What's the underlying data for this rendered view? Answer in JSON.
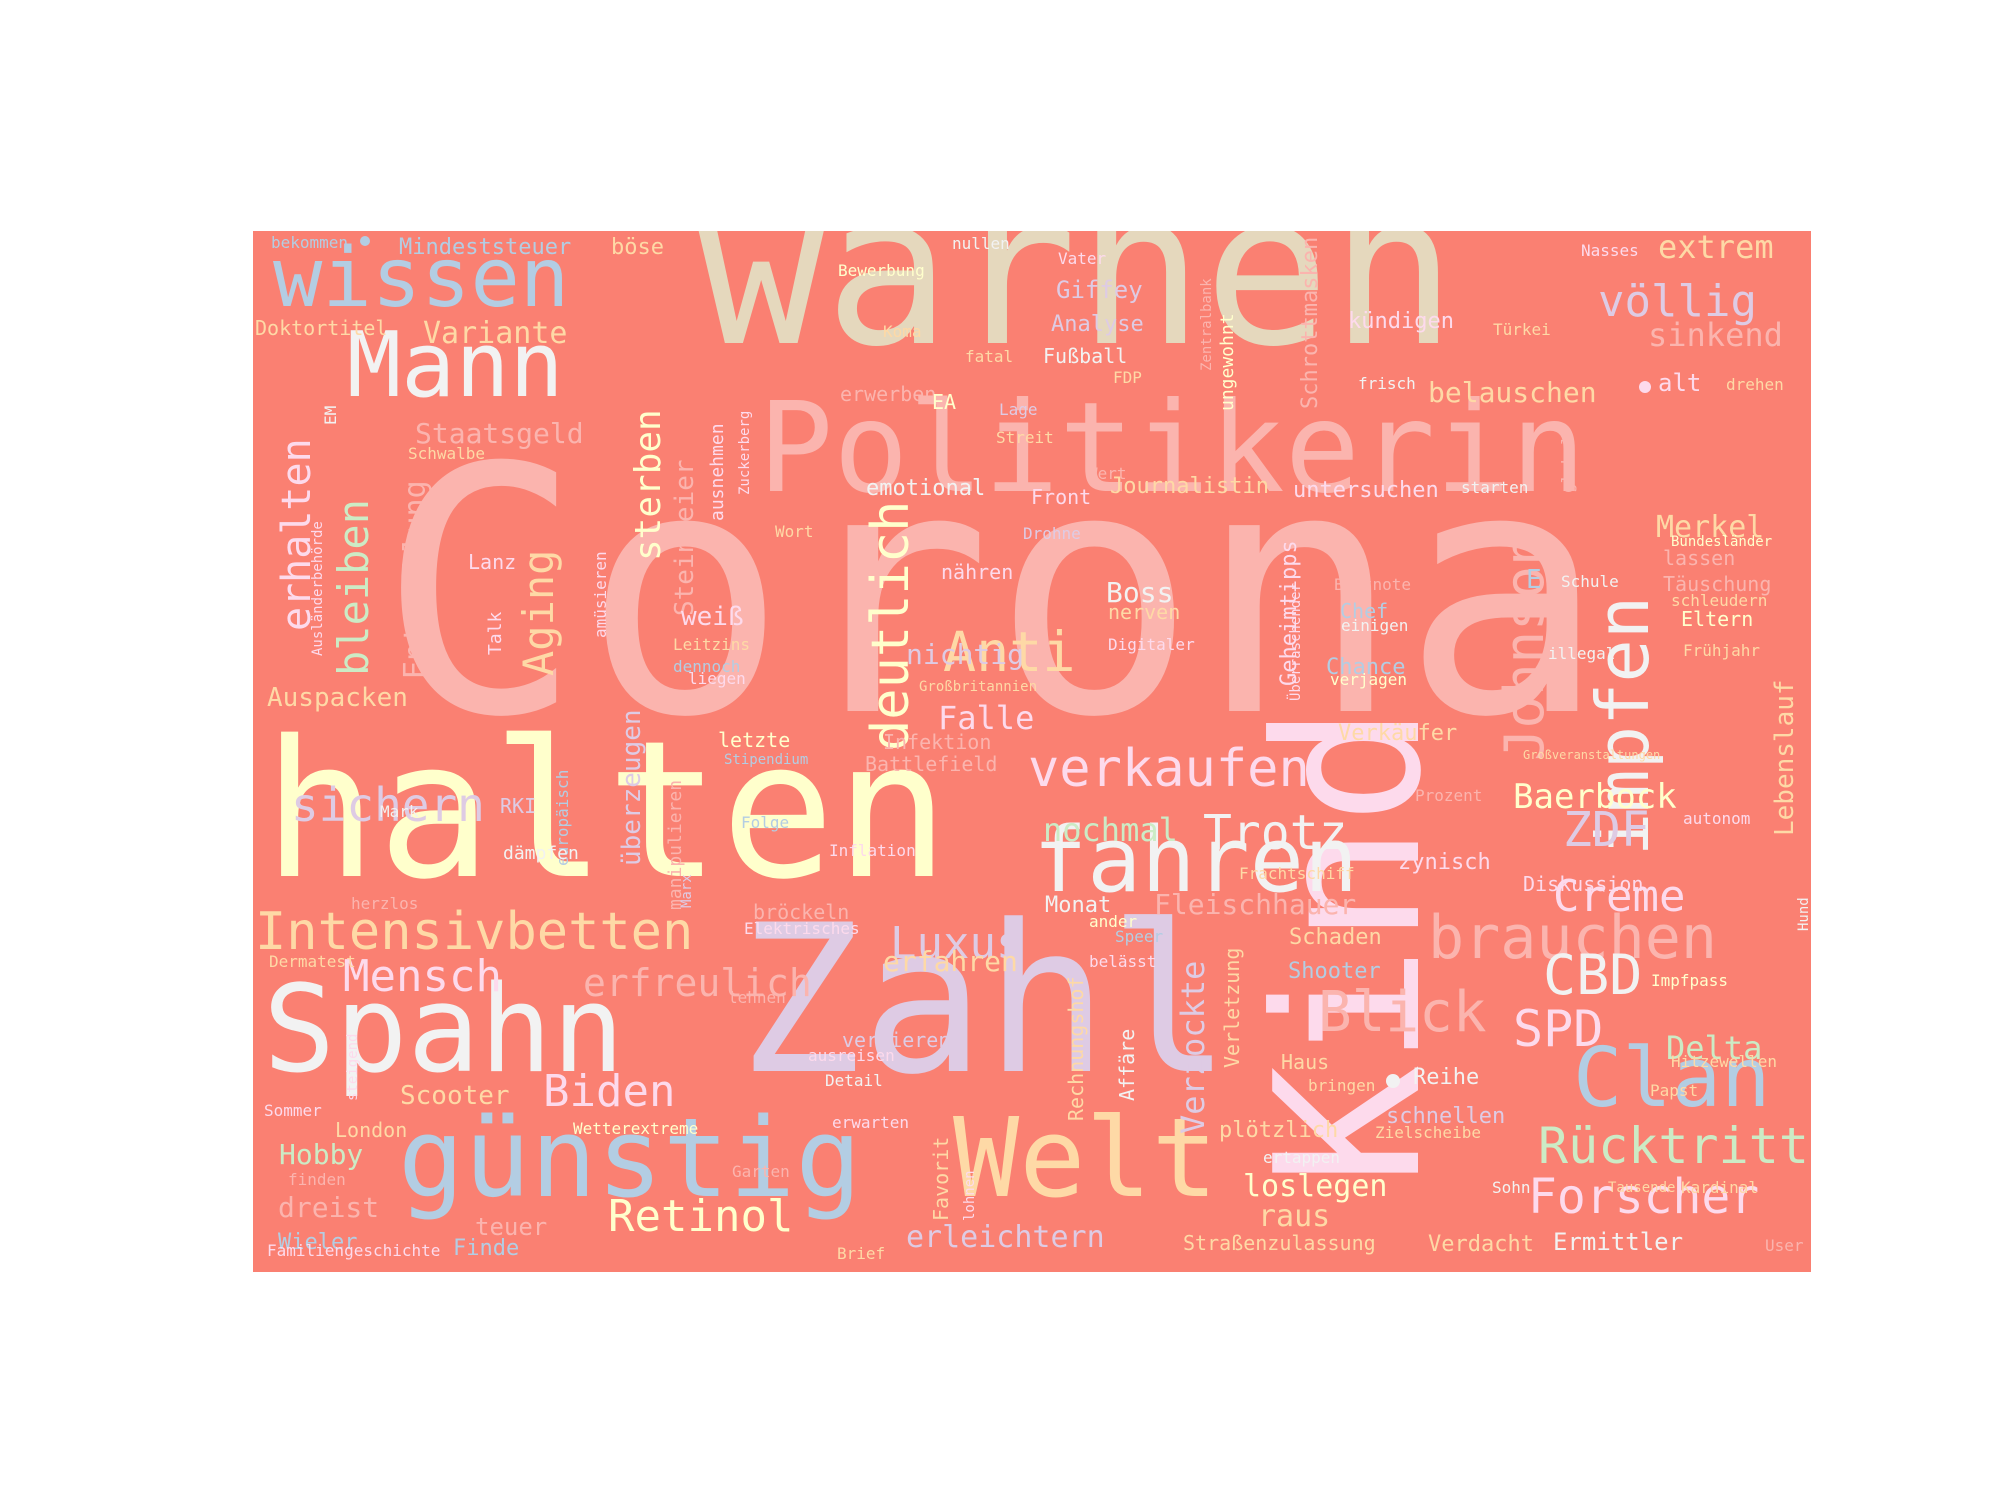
{
  "background_color": "#fa8072",
  "palette": [
    "#fbb4ae",
    "#b3cde3",
    "#ccebc5",
    "#decbe4",
    "#fed9a6",
    "#ffffcc",
    "#e5d8bd",
    "#fddaec",
    "#f2f2f2"
  ],
  "words": [
    {
      "text": "Corona",
      "color": "#fbb4ae"
    },
    {
      "text": "warnen",
      "color": "#e5d8bd"
    },
    {
      "text": "halten",
      "color": "#ffffcc"
    },
    {
      "text": "Zahl",
      "color": "#decbe4"
    },
    {
      "text": "Kind",
      "color": "#fddaec"
    },
    {
      "text": "Politikerin",
      "color": "#fbb4ae"
    },
    {
      "text": "Spahn",
      "color": "#f2f2f2"
    },
    {
      "text": "günstig",
      "color": "#b3cde3"
    },
    {
      "text": "Welt",
      "color": "#fed9a6"
    },
    {
      "text": "wissen",
      "color": "#b3cde3"
    },
    {
      "text": "Mann",
      "color": "#f2f2f2"
    },
    {
      "text": "fahren",
      "color": "#f2f2f2"
    },
    {
      "text": "impfen",
      "color": "#f2f2f2"
    },
    {
      "text": "Clan",
      "color": "#b3cde3"
    },
    {
      "text": "brauchen",
      "color": "#fbb4ae"
    },
    {
      "text": "Intensivbetten",
      "color": "#fed9a6"
    },
    {
      "text": "verkaufen",
      "color": "#fddaec"
    },
    {
      "text": "Johnson",
      "color": "#fbb4ae"
    },
    {
      "text": "deutlich",
      "color": "#ffffcc"
    },
    {
      "text": "Anti",
      "color": "#fed9a6"
    },
    {
      "text": "Rücktritt",
      "color": "#ccebc5"
    },
    {
      "text": "Forscher",
      "color": "#fddaec"
    },
    {
      "text": "Blick",
      "color": "#fbb4ae"
    },
    {
      "text": "CBD",
      "color": "#f2f2f2"
    },
    {
      "text": "SPD",
      "color": "#fddaec"
    },
    {
      "text": "Mensch",
      "color": "#fddaec"
    },
    {
      "text": "sichern",
      "color": "#decbe4"
    },
    {
      "text": "Trotz",
      "color": "#f2f2f2"
    },
    {
      "text": "ZDF",
      "color": "#decbe4"
    },
    {
      "text": "Retinol",
      "color": "#ffffcc"
    },
    {
      "text": "Biden",
      "color": "#fddaec"
    },
    {
      "text": "Luxus",
      "color": "#decbe4"
    },
    {
      "text": "erfreulich",
      "color": "#fbb4ae"
    },
    {
      "text": "völlig",
      "color": "#decbe4"
    },
    {
      "text": "extrem",
      "color": "#fed9a6"
    },
    {
      "text": "sinkend",
      "color": "#fbb4ae"
    },
    {
      "text": "erhalten",
      "color": "#fddaec"
    },
    {
      "text": "bleiben",
      "color": "#ccebc5"
    },
    {
      "text": "Aging",
      "color": "#fed9a6"
    },
    {
      "text": "sterben",
      "color": "#ffffcc"
    },
    {
      "text": "Creme",
      "color": "#fddaec"
    },
    {
      "text": "Baerbock",
      "color": "#ffffcc"
    },
    {
      "text": "Merkel",
      "color": "#fed9a6"
    },
    {
      "text": "Lebenslauf",
      "color": "#fed9a6"
    },
    {
      "text": "Variante",
      "color": "#fed9a6"
    },
    {
      "text": "Auspacken",
      "color": "#fed9a6"
    },
    {
      "text": "nochmal",
      "color": "#ccebc5"
    },
    {
      "text": "Falle",
      "color": "#fddaec"
    },
    {
      "text": "Verzockte",
      "color": "#decbe4"
    },
    {
      "text": "loslegen",
      "color": "#ffffcc"
    },
    {
      "text": "raus",
      "color": "#fed9a6"
    },
    {
      "text": "erleichtern",
      "color": "#decbe4"
    },
    {
      "text": "erfahren",
      "color": "#fed9a6"
    },
    {
      "text": "Delta",
      "color": "#ccebc5"
    },
    {
      "text": "Staatsgeld",
      "color": "#fbb4ae"
    },
    {
      "text": "Entwicklung",
      "color": "#fbb4ae"
    },
    {
      "text": "Steinmeier",
      "color": "#fbb4ae"
    },
    {
      "text": "überzeugen",
      "color": "#decbe4"
    },
    {
      "text": "Fleischhauer",
      "color": "#fbb4ae"
    },
    {
      "text": "belauschen",
      "color": "#fed9a6"
    },
    {
      "text": "Boss",
      "color": "#f2f2f2"
    },
    {
      "text": "weiß",
      "color": "#fddaec"
    },
    {
      "text": "nichtig",
      "color": "#decbe4"
    },
    {
      "text": "Schrottmasken",
      "color": "#fbb4ae"
    },
    {
      "text": "Mindeststeuer",
      "color": "#b3cde3"
    },
    {
      "text": "Geheimtipps",
      "color": "#fddaec"
    },
    {
      "text": "Giffey",
      "color": "#decbe4"
    },
    {
      "text": "Analyse",
      "color": "#decbe4"
    },
    {
      "text": "kündigen",
      "color": "#fddaec"
    },
    {
      "text": "Doktortitel",
      "color": "#fed9a6"
    },
    {
      "text": "böse",
      "color": "#fed9a6"
    },
    {
      "text": "Journalistin",
      "color": "#fed9a6"
    },
    {
      "text": "untersuchen",
      "color": "#fddaec"
    },
    {
      "text": "emotional",
      "color": "#f2f2f2"
    },
    {
      "text": "Scooter",
      "color": "#fed9a6"
    },
    {
      "text": "Hobby",
      "color": "#ccebc5"
    },
    {
      "text": "dreist",
      "color": "#fbb4ae"
    },
    {
      "text": "Wieler",
      "color": "#b3cde3"
    },
    {
      "text": "teuer",
      "color": "#fbb4ae"
    },
    {
      "text": "Ermittler",
      "color": "#f2f2f2"
    },
    {
      "text": "Verdacht",
      "color": "#fed9a6"
    },
    {
      "text": "Straßenzulassung",
      "color": "#fed9a6"
    },
    {
      "text": "Finde",
      "color": "#b3cde3"
    },
    {
      "text": "Familiengeschichte",
      "color": "#fddaec"
    },
    {
      "text": "Chance",
      "color": "#b3cde3"
    },
    {
      "text": "Verkäufer",
      "color": "#fed9a6"
    },
    {
      "text": "Schaden",
      "color": "#fed9a6"
    },
    {
      "text": "Shooter",
      "color": "#b3cde3"
    },
    {
      "text": "Diskussion",
      "color": "#fddaec"
    },
    {
      "text": "zynisch",
      "color": "#fddaec"
    },
    {
      "text": "Monat",
      "color": "#f2f2f2"
    },
    {
      "text": "Reihe",
      "color": "#f2f2f2"
    },
    {
      "text": "schnellen",
      "color": "#decbe4"
    },
    {
      "text": "plötzlich",
      "color": "#fed9a6"
    },
    {
      "text": "Haus",
      "color": "#fed9a6"
    },
    {
      "text": "Affäre",
      "color": "#f2f2f2"
    },
    {
      "text": "Verletzung",
      "color": "#fed9a6"
    },
    {
      "text": "Rechnungshof",
      "color": "#fed9a6"
    },
    {
      "text": "Favorit",
      "color": "#fed9a6"
    },
    {
      "text": "verlieren",
      "color": "#decbe4"
    },
    {
      "text": "bröckeln",
      "color": "#fbb4ae"
    },
    {
      "text": "London",
      "color": "#fed9a6"
    },
    {
      "text": "Infektion",
      "color": "#fbb4ae"
    },
    {
      "text": "Battlefield",
      "color": "#fbb4ae"
    },
    {
      "text": "letzte",
      "color": "#ffffcc"
    },
    {
      "text": "Lanz",
      "color": "#fddaec"
    },
    {
      "text": "Talk",
      "color": "#fddaec"
    },
    {
      "text": "RKI",
      "color": "#decbe4"
    },
    {
      "text": "manipulieren",
      "color": "#fbb4ae"
    },
    {
      "text": "ausnehmen",
      "color": "#fddaec"
    },
    {
      "text": "Fußball",
      "color": "#f2f2f2"
    },
    {
      "text": "Front",
      "color": "#fddaec"
    },
    {
      "text": "erwerben",
      "color": "#fbb4ae"
    },
    {
      "text": "nerven",
      "color": "#fed9a6"
    },
    {
      "text": "Eltern",
      "color": "#ffffcc"
    },
    {
      "text": "lassen",
      "color": "#fbb4ae"
    },
    {
      "text": "Täuschung",
      "color": "#fbb4ae"
    },
    {
      "text": "ungewohnt",
      "color": "#ffffcc"
    },
    {
      "text": "alt",
      "color": "#fddaec"
    },
    {
      "text": "E",
      "color": "#b3cde3"
    },
    {
      "text": "Chef",
      "color": "#b3cde3"
    },
    {
      "text": "EA",
      "color": "#ffffcc"
    },
    {
      "text": "Bewerbung",
      "color": "#ffffcc"
    },
    {
      "text": "Koma",
      "color": "#fed9a6"
    },
    {
      "text": "fatal",
      "color": "#fed9a6"
    },
    {
      "text": "FDP",
      "color": "#fed9a6"
    },
    {
      "text": "Vater",
      "color": "#fddaec"
    },
    {
      "text": "nullen",
      "color": "#f2f2f2"
    },
    {
      "text": "Zentralbank",
      "color": "#fbb4ae"
    },
    {
      "text": "Lage",
      "color": "#decbe4"
    },
    {
      "text": "Streit",
      "color": "#fed9a6"
    },
    {
      "text": "Wert",
      "color": "#fbb4ae"
    },
    {
      "text": "Wort",
      "color": "#fed9a6"
    },
    {
      "text": "Drohne",
      "color": "#decbe4"
    },
    {
      "text": "nähren",
      "color": "#fddaec"
    },
    {
      "text": "Digitaler",
      "color": "#fddaec"
    },
    {
      "text": "Leitzins",
      "color": "#fed9a6"
    },
    {
      "text": "dennoch",
      "color": "#b3cde3"
    },
    {
      "text": "liegen",
      "color": "#fddaec"
    },
    {
      "text": "Großbritannien",
      "color": "#fed9a6"
    },
    {
      "text": "Stipendium",
      "color": "#b3cde3"
    },
    {
      "text": "Folge",
      "color": "#b3cde3"
    },
    {
      "text": "Inflation",
      "color": "#fddaec"
    },
    {
      "text": "Marx",
      "color": "#decbe4"
    },
    {
      "text": "Mark",
      "color": "#f2f2f2"
    },
    {
      "text": "europäisch",
      "color": "#b3cde3"
    },
    {
      "text": "dämpfen",
      "color": "#f2f2f2"
    },
    {
      "text": "amüsieren",
      "color": "#fddaec"
    },
    {
      "text": "EM",
      "color": "#f2f2f2"
    },
    {
      "text": "Schwalbe",
      "color": "#fed9a6"
    },
    {
      "text": "Zuckerberg",
      "color": "#fddaec"
    },
    {
      "text": "Ausländerbehörde",
      "color": "#fddaec"
    },
    {
      "text": "bekommen",
      "color": "#b3cde3"
    },
    {
      "text": "herzlos",
      "color": "#fbb4ae"
    },
    {
      "text": "Dermatest",
      "color": "#fed9a6"
    },
    {
      "text": "steigend",
      "color": "#fddaec"
    },
    {
      "text": "Sommer",
      "color": "#fddaec"
    },
    {
      "text": "finden",
      "color": "#fbb4ae"
    },
    {
      "text": "Elektrisches",
      "color": "#fddaec"
    },
    {
      "text": "lehnen",
      "color": "#fbb4ae"
    },
    {
      "text": "ausreisen",
      "color": "#fddaec"
    },
    {
      "text": "Detail",
      "color": "#f2f2f2"
    },
    {
      "text": "erwarten",
      "color": "#fddaec"
    },
    {
      "text": "Wetterextreme",
      "color": "#ffffcc"
    },
    {
      "text": "Garten",
      "color": "#fbb4ae"
    },
    {
      "text": "Brief",
      "color": "#fed9a6"
    },
    {
      "text": "lohnen",
      "color": "#fddaec"
    },
    {
      "text": "ander",
      "color": "#ffffcc"
    },
    {
      "text": "Speer",
      "color": "#b3cde3"
    },
    {
      "text": "belässt",
      "color": "#fddaec"
    },
    {
      "text": "Frachtschiff",
      "color": "#fed9a6"
    },
    {
      "text": "Prozent",
      "color": "#fbb4ae"
    },
    {
      "text": "autonom",
      "color": "#fddaec"
    },
    {
      "text": "Großveranstaltungen",
      "color": "#fed9a6"
    },
    {
      "text": "illegal",
      "color": "#f2f2f2"
    },
    {
      "text": "Frühjahr",
      "color": "#fed9a6"
    },
    {
      "text": "schleudern",
      "color": "#fed9a6"
    },
    {
      "text": "einigen",
      "color": "#f2f2f2"
    },
    {
      "text": "verjagen",
      "color": "#ffffcc"
    },
    {
      "text": "Bestnote",
      "color": "#fbb4ae"
    },
    {
      "text": "Schule",
      "color": "#f2f2f2"
    },
    {
      "text": "Bundesländer",
      "color": "#ffffcc"
    },
    {
      "text": "starten",
      "color": "#f2f2f2"
    },
    {
      "text": "global",
      "color": "#fbb4ae"
    },
    {
      "text": "frisch",
      "color": "#f2f2f2"
    },
    {
      "text": "drehen",
      "color": "#fed9a6"
    },
    {
      "text": "Türkei",
      "color": "#fed9a6"
    },
    {
      "text": "Nasses",
      "color": "#fddaec"
    },
    {
      "text": "Überraschender",
      "color": "#fddaec"
    },
    {
      "text": "Impfpass",
      "color": "#ffffcc"
    },
    {
      "text": "Hund",
      "color": "#f2f2f2"
    },
    {
      "text": "Hitzewellen",
      "color": "#fed9a6"
    },
    {
      "text": "Papst",
      "color": "#fed9a6"
    },
    {
      "text": "Zielscheibe",
      "color": "#fed9a6"
    },
    {
      "text": "bringen",
      "color": "#fed9a6"
    },
    {
      "text": "ertappen",
      "color": "#f2f2f2"
    },
    {
      "text": "Sohn",
      "color": "#f2f2f2"
    },
    {
      "text": "Kardinal",
      "color": "#fed9a6"
    },
    {
      "text": "Tausende",
      "color": "#fed9a6"
    },
    {
      "text": "User",
      "color": "#fbb4ae"
    }
  ]
}
